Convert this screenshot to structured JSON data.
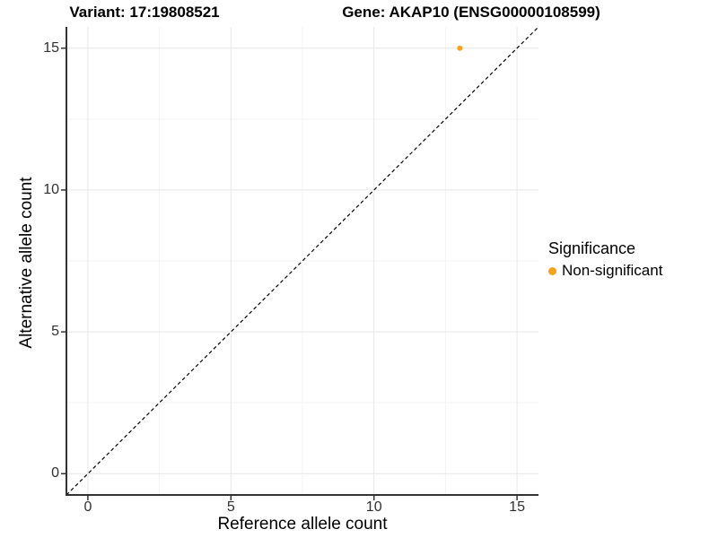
{
  "titles": {
    "variant": "Variant: 17:19808521",
    "gene": "Gene: AKAP10 (ENSG00000108599)"
  },
  "chart_data": {
    "type": "scatter",
    "title_left": "Variant: 17:19808521",
    "title_right": "Gene: AKAP10 (ENSG00000108599)",
    "xlabel": "Reference allele count",
    "ylabel": "Alternative allele count",
    "xlim": [
      -0.75,
      15.75
    ],
    "ylim": [
      -0.75,
      15.75
    ],
    "x_ticks": [
      0,
      5,
      10,
      15
    ],
    "y_ticks": [
      0,
      5,
      10,
      15
    ],
    "x_minor_ticks": [
      2.5,
      7.5,
      12.5
    ],
    "y_minor_ticks": [
      2.5,
      7.5,
      12.5
    ],
    "grid": "major and minor gridlines on white background",
    "series": [
      {
        "name": "Non-significant",
        "color": "#FAA21B",
        "points": [
          {
            "x": 13,
            "y": 15
          }
        ]
      }
    ],
    "reference_line": {
      "type": "identity",
      "slope": 1,
      "intercept": 0,
      "style": "dashed",
      "color": "#000000"
    },
    "legend": {
      "title": "Significance",
      "position": "right",
      "entries": [
        {
          "label": "Non-significant",
          "color": "#FAA21B",
          "marker": "circle"
        }
      ]
    }
  },
  "colors": {
    "background": "#FFFFFF",
    "grid_major": "#E7E7E7",
    "grid_minor": "#F3F3F3",
    "axis_line": "#333333",
    "tick_mark": "#333333",
    "tick_text": "#303030",
    "title_text": "#000000",
    "point": "#FAA21B"
  }
}
